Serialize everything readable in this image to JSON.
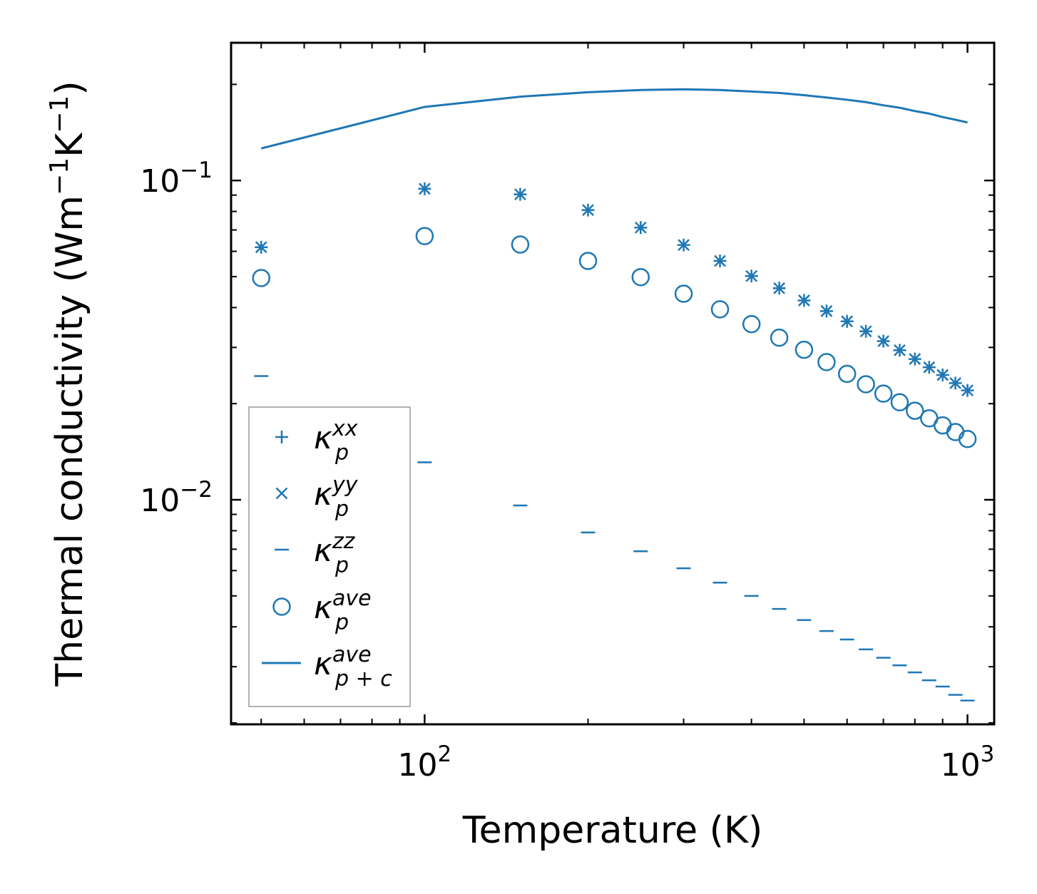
{
  "chart_data": {
    "type": "scatter",
    "title": "",
    "xlabel": "Temperature (K)",
    "ylabel": "Thermal conductivity (Wm",
    "ylabel_unit_parts": [
      "Thermal conductivity (Wm",
      "−1",
      "K",
      "−1",
      ")"
    ],
    "xscale": "log",
    "yscale": "log",
    "xlim": [
      44,
      1120
    ],
    "ylim": [
      0.00198,
      0.27
    ],
    "x_ticks": [
      {
        "value": 100,
        "base": "10",
        "exp": "2"
      },
      {
        "value": 1000,
        "base": "10",
        "exp": "3"
      }
    ],
    "y_ticks": [
      {
        "value": 0.1,
        "base": "10",
        "exp": "−1"
      },
      {
        "value": 0.01,
        "base": "10",
        "exp": "−2"
      }
    ],
    "color": "#1f77b4",
    "legend_position": "lower-left",
    "series": [
      {
        "name": "kappa_p_xx",
        "label_main": "κ",
        "label_sup": "xx",
        "label_sub": "p",
        "marker": "plus",
        "x": [
          50,
          100,
          150,
          200,
          250,
          300,
          350,
          400,
          450,
          500,
          550,
          600,
          650,
          700,
          750,
          800,
          850,
          900,
          950,
          1000
        ],
        "y": [
          0.0618,
          0.0942,
          0.0905,
          0.0808,
          0.0712,
          0.0628,
          0.056,
          0.0502,
          0.046,
          0.0421,
          0.039,
          0.0362,
          0.0337,
          0.0314,
          0.0294,
          0.0276,
          0.026,
          0.0246,
          0.0232,
          0.022
        ]
      },
      {
        "name": "kappa_p_yy",
        "label_main": "κ",
        "label_sup": "yy",
        "label_sub": "p",
        "marker": "x",
        "x": [
          50,
          100,
          150,
          200,
          250,
          300,
          350,
          400,
          450,
          500,
          550,
          600,
          650,
          700,
          750,
          800,
          850,
          900,
          950,
          1000
        ],
        "y": [
          0.0618,
          0.0942,
          0.0905,
          0.0808,
          0.0712,
          0.0628,
          0.056,
          0.0502,
          0.046,
          0.0421,
          0.039,
          0.0362,
          0.0337,
          0.0314,
          0.0294,
          0.0276,
          0.026,
          0.0246,
          0.0232,
          0.022
        ]
      },
      {
        "name": "kappa_p_zz",
        "label_main": "κ",
        "label_sup": "zz",
        "label_sub": "p",
        "marker": "hline",
        "x": [
          50,
          100,
          150,
          200,
          250,
          300,
          350,
          400,
          450,
          500,
          550,
          600,
          650,
          700,
          750,
          800,
          850,
          900,
          950,
          1000
        ],
        "y": [
          0.0244,
          0.0131,
          0.0096,
          0.0079,
          0.0069,
          0.0061,
          0.0055,
          0.005,
          0.00455,
          0.0042,
          0.00388,
          0.00365,
          0.0034,
          0.0032,
          0.00303,
          0.00288,
          0.00272,
          0.0026,
          0.00245,
          0.00235
        ]
      },
      {
        "name": "kappa_p_ave",
        "label_main": "κ",
        "label_sup": "ave",
        "label_sub": "p",
        "marker": "circle",
        "x": [
          50,
          100,
          150,
          200,
          250,
          300,
          350,
          400,
          450,
          500,
          550,
          600,
          650,
          700,
          750,
          800,
          850,
          900,
          950,
          1000
        ],
        "y": [
          0.0495,
          0.067,
          0.063,
          0.056,
          0.0498,
          0.0442,
          0.0395,
          0.0355,
          0.0322,
          0.0295,
          0.027,
          0.0248,
          0.023,
          0.0215,
          0.0202,
          0.019,
          0.018,
          0.0171,
          0.0163,
          0.0155
        ]
      },
      {
        "name": "kappa_pc_ave",
        "label_main": "κ",
        "label_sup": "ave",
        "label_sub": "p + c",
        "marker": "line",
        "x": [
          50,
          100,
          150,
          200,
          250,
          300,
          350,
          400,
          450,
          500,
          550,
          600,
          650,
          700,
          750,
          800,
          850,
          900,
          950,
          1000
        ],
        "y": [
          0.126,
          0.17,
          0.183,
          0.189,
          0.192,
          0.193,
          0.192,
          0.19,
          0.188,
          0.185,
          0.182,
          0.179,
          0.176,
          0.172,
          0.169,
          0.165,
          0.162,
          0.158,
          0.155,
          0.152
        ]
      }
    ]
  }
}
